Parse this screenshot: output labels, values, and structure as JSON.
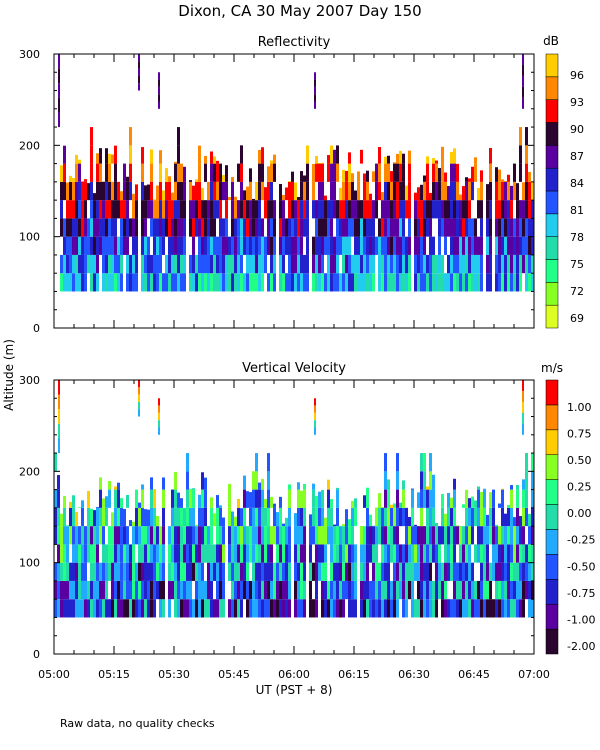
{
  "header": {
    "title": "Dixon, CA 30 May 2007  Day 150"
  },
  "shared": {
    "ylabel": "Altitude (m)",
    "xlabel": "UT  (PST + 8)",
    "note": "Raw data, no quality checks"
  },
  "chart_data": [
    {
      "type": "heatmap",
      "title": "Reflectivity",
      "x_range": [
        "05:00",
        "07:00"
      ],
      "x_tick_labels": [
        "05:00",
        "05:15",
        "05:30",
        "05:45",
        "06:00",
        "06:15",
        "06:30",
        "06:45",
        "07:00"
      ],
      "ylim": [
        0,
        300
      ],
      "y_tick_labels": [
        "0",
        "100",
        "200",
        "300"
      ],
      "colorbar": {
        "unit": "dB",
        "labels": [
          "69",
          "72",
          "75",
          "78",
          "81",
          "84",
          "87",
          "90",
          "93",
          "96"
        ],
        "colors": [
          "#ddff22",
          "#88ff22",
          "#22ff88",
          "#22ddaa",
          "#22ccee",
          "#2255ff",
          "#2222cc",
          "#5a00a0",
          "#2a0530",
          "#ff0000",
          "#ff8800",
          "#ffcc00"
        ]
      },
      "echo_layer": {
        "base_m": 40,
        "typical_top_m": [
          140,
          180
        ],
        "max_top_m": 220,
        "low_level_values": "78-84 dB",
        "upper_level_values": "84-93 dB"
      },
      "isolated_echoes": [
        {
          "time": "05:01",
          "bottom_m": 220,
          "top_m": 300
        },
        {
          "time": "05:21",
          "bottom_m": 260,
          "top_m": 300
        },
        {
          "time": "05:26",
          "bottom_m": 240,
          "top_m": 280
        },
        {
          "time": "06:05",
          "bottom_m": 240,
          "top_m": 280
        },
        {
          "time": "06:57",
          "bottom_m": 240,
          "top_m": 300
        }
      ]
    },
    {
      "type": "heatmap",
      "title": "Vertical Velocity",
      "x_range": [
        "05:00",
        "07:00"
      ],
      "x_tick_labels": [
        "05:00",
        "05:15",
        "05:30",
        "05:45",
        "06:00",
        "06:15",
        "06:30",
        "06:45",
        "07:00"
      ],
      "ylim": [
        0,
        300
      ],
      "y_tick_labels": [
        "0",
        "100",
        "200",
        "300"
      ],
      "colorbar": {
        "unit": "m/s",
        "labels": [
          "-2.00",
          "-1.00",
          "-0.75",
          "-0.50",
          "-0.25",
          "0.00",
          "0.25",
          "0.50",
          "0.75",
          "1.00"
        ],
        "colors": [
          "#2a0530",
          "#5a00a0",
          "#2222cc",
          "#2255ff",
          "#22aaff",
          "#22ddaa",
          "#22ff88",
          "#88ff22",
          "#ffcc00",
          "#ff8800",
          "#ff0000"
        ]
      },
      "echo_layer": {
        "base_m": 40,
        "typical_top_m": [
          140,
          180
        ],
        "max_top_m": 220,
        "dominant_values": "-2.00 to 0.25 m/s"
      },
      "isolated_echoes": [
        {
          "time": "05:01",
          "bottom_m": 220,
          "top_m": 300
        },
        {
          "time": "05:21",
          "bottom_m": 260,
          "top_m": 300
        },
        {
          "time": "05:26",
          "bottom_m": 240,
          "top_m": 280
        },
        {
          "time": "06:05",
          "bottom_m": 240,
          "top_m": 280
        },
        {
          "time": "06:57",
          "bottom_m": 240,
          "top_m": 300
        }
      ]
    }
  ]
}
